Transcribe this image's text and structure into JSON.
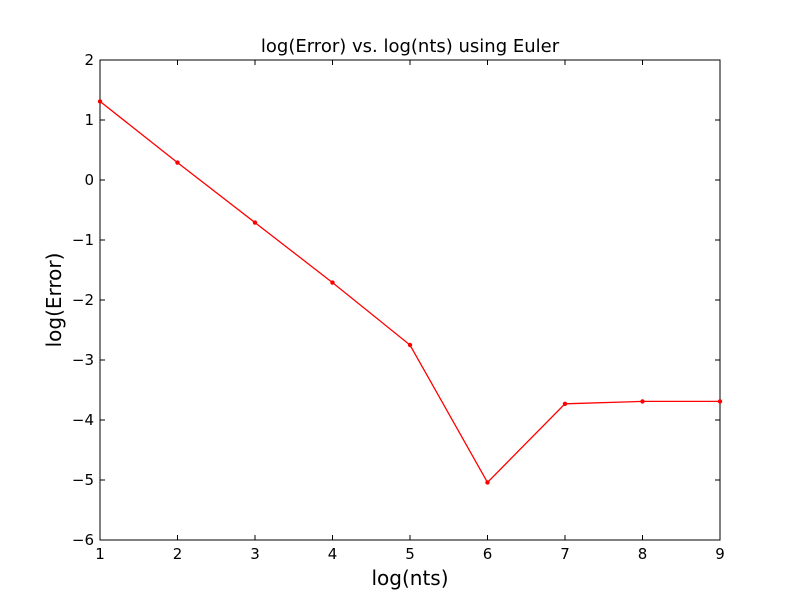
{
  "chart_data": {
    "type": "line",
    "title": "log(Error) vs. log(nts) using Euler",
    "xlabel": "log(nts)",
    "ylabel": "log(Error)",
    "xlim": [
      1,
      9
    ],
    "ylim": [
      -6,
      2
    ],
    "xticks": [
      1,
      2,
      3,
      4,
      5,
      6,
      7,
      8,
      9
    ],
    "yticks": [
      -6,
      -5,
      -4,
      -3,
      -2,
      -1,
      0,
      1,
      2
    ],
    "xtick_labels": [
      "1",
      "2",
      "3",
      "4",
      "5",
      "6",
      "7",
      "8",
      "9"
    ],
    "ytick_labels": [
      "−6",
      "−5",
      "−4",
      "−3",
      "−2",
      "−1",
      "0",
      "1",
      "2"
    ],
    "grid": false,
    "legend": null,
    "series": [
      {
        "color": "#ff0000",
        "marker": "point",
        "x": [
          1,
          2,
          3,
          4,
          5,
          6,
          7,
          8,
          9
        ],
        "y": [
          1.31,
          0.29,
          -0.71,
          -1.71,
          -2.75,
          -5.04,
          -3.73,
          -3.69,
          -3.69
        ]
      }
    ]
  }
}
